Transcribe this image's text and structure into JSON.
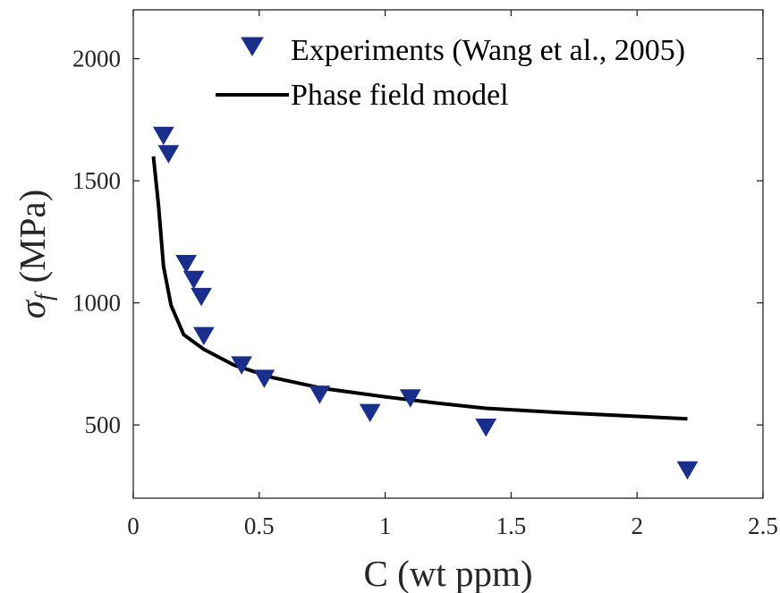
{
  "chart_data": {
    "type": "scatter",
    "xlabel": "C (wt ppm)",
    "ylabel": {
      "symbol": "σ",
      "subscript": "f",
      "unit": "(MPa)"
    },
    "xlim": [
      0,
      2.5
    ],
    "ylim": [
      200,
      2200
    ],
    "x_ticks": [
      0,
      0.5,
      1,
      1.5,
      2,
      2.5
    ],
    "x_tick_labels": [
      "0",
      "0.5",
      "1",
      "1.5",
      "2",
      "2.5"
    ],
    "y_ticks": [
      500,
      1000,
      1500,
      2000
    ],
    "y_tick_labels": [
      "500",
      "1000",
      "1500",
      "2000"
    ],
    "grid": false,
    "legend_position": "top-right",
    "series": [
      {
        "name": "Experiments (Wang et al., 2005)",
        "kind": "scatter",
        "marker": "triangle-down",
        "color": "#1a2f8c",
        "x": [
          0.12,
          0.14,
          0.21,
          0.24,
          0.27,
          0.28,
          0.43,
          0.52,
          0.74,
          0.94,
          1.1,
          1.4,
          2.2
        ],
        "y": [
          1690,
          1615,
          1165,
          1100,
          1030,
          870,
          750,
          695,
          630,
          555,
          615,
          495,
          320
        ]
      },
      {
        "name": "Phase field model",
        "kind": "line",
        "color": "#000000",
        "x": [
          0.08,
          0.1,
          0.12,
          0.15,
          0.2,
          0.28,
          0.4,
          0.55,
          0.75,
          1.0,
          1.2,
          1.4,
          1.7,
          2.0,
          2.2
        ],
        "y": [
          1600,
          1400,
          1150,
          990,
          870,
          810,
          745,
          695,
          650,
          615,
          590,
          568,
          550,
          535,
          525
        ]
      }
    ]
  }
}
